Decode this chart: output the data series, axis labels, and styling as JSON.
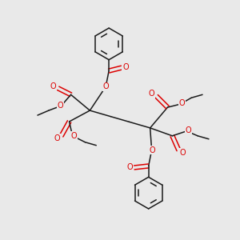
{
  "background_color": "#e9e9e9",
  "bond_color": "#1a1a1a",
  "atom_color_O": "#dd0000",
  "figsize": [
    3.0,
    3.0
  ],
  "dpi": 100,
  "C1": [
    112,
    162
  ],
  "C5": [
    188,
    140
  ],
  "lw": 1.1,
  "fs": 7.0
}
